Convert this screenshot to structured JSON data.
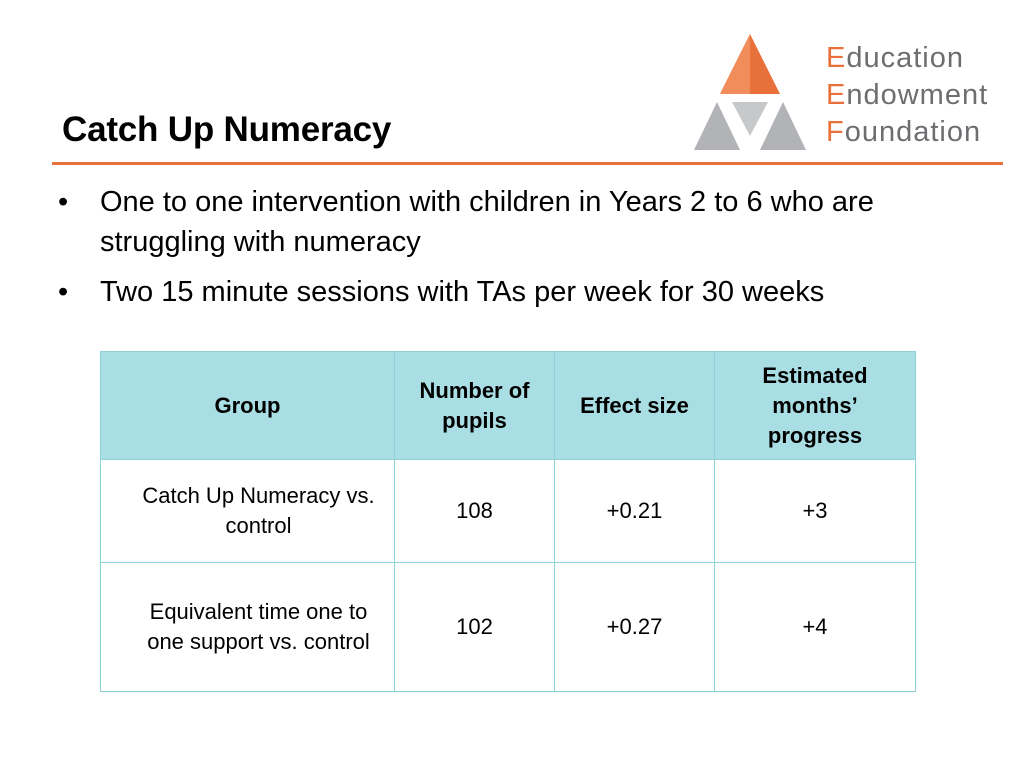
{
  "slide": {
    "title": "Catch Up Numeracy",
    "bullets": [
      "One to one intervention with children in Years 2 to 6 who are struggling with numeracy",
      "Two 15 minute sessions with TAs per week for 30 weeks"
    ],
    "bullet_glyph": "•"
  },
  "logo": {
    "lines": [
      {
        "cap": "E",
        "rest": "ducation"
      },
      {
        "cap": "E",
        "rest": "ndowment"
      },
      {
        "cap": "F",
        "rest": "oundation"
      }
    ],
    "colors": {
      "orange": "#E8703A",
      "grey": "#B1B3B6",
      "text": "#6d6e71"
    }
  },
  "table": {
    "headers": [
      "Group",
      "Number of pupils",
      "Effect size",
      "Estimated months’ progress"
    ],
    "rows": [
      [
        "Catch Up Numeracy vs. control",
        "108",
        "+0.21",
        "+3"
      ],
      [
        "Equivalent time one to one support vs. control",
        "102",
        "+0.27",
        "+4"
      ]
    ]
  },
  "colors": {
    "accent": "#E8703A",
    "table_header_bg": "#a9dfe4",
    "table_border": "#8fd3d8"
  }
}
